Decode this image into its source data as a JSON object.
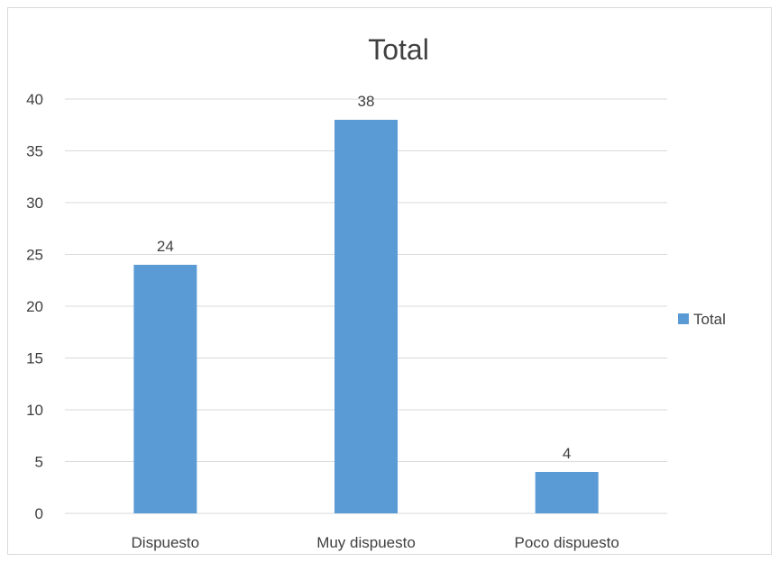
{
  "chart_data": {
    "type": "bar",
    "title": "Total",
    "xlabel": "",
    "ylabel": "",
    "categories": [
      "Dispuesto",
      "Muy dispuesto",
      "Poco dispuesto"
    ],
    "series": [
      {
        "name": "Total",
        "values": [
          24,
          38,
          4
        ],
        "color": "#5b9bd5"
      }
    ],
    "data_labels": [
      "24",
      "38",
      "4"
    ],
    "ylim": [
      0,
      40
    ],
    "y_ticks": [
      0,
      5,
      10,
      15,
      20,
      25,
      30,
      35,
      40
    ],
    "y_tick_labels": [
      "0",
      "5",
      "10",
      "15",
      "20",
      "25",
      "30",
      "35",
      "40"
    ],
    "grid": true,
    "legend_position": "right",
    "colors": {
      "gridline": "#d9d9d9",
      "text": "#404040"
    }
  }
}
